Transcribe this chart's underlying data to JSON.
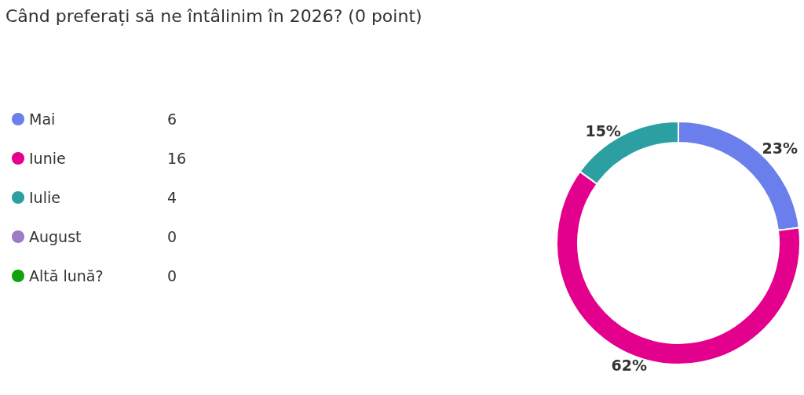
{
  "chart_data": {
    "type": "donut",
    "title": "Când preferați să ne întâlinim în 2026? (0 point)",
    "categories": [
      "Mai",
      "Iunie",
      "Iulie",
      "August",
      "Altă lună?"
    ],
    "values": [
      23,
      62,
      15,
      0,
      0
    ],
    "colors": [
      "#6b7fec",
      "#e3008c",
      "#2b9fa1",
      "#9b7cc6",
      "#13a10e"
    ],
    "value_labels": [
      "23%",
      "62%",
      "15%",
      null,
      null
    ],
    "annotations": [
      "6",
      "16",
      "4",
      "0",
      "0"
    ],
    "legend": "left"
  }
}
